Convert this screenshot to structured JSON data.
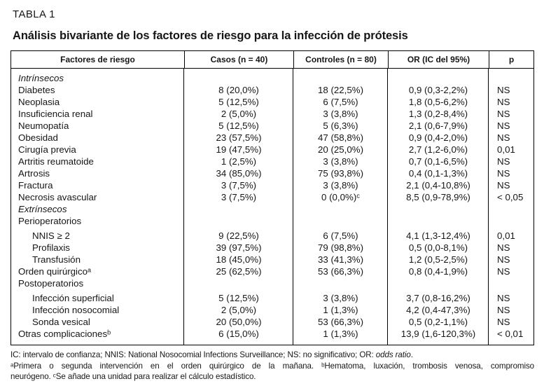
{
  "page": {
    "table_label": "TABLA 1",
    "title": "Análisis bivariante de los factores de riesgo para la infección de prótesis"
  },
  "table": {
    "columns": [
      "Factores de riesgo",
      "Casos (n = 40)",
      "Controles (n = 80)",
      "OR (IC del 95%)",
      "p"
    ],
    "rows": [
      {
        "type": "section",
        "label": "Intrínsecos"
      },
      {
        "type": "data",
        "label": "Diabetes",
        "casos": "8 (20,0%)",
        "controles": "18 (22,5%)",
        "or": "0,9 (0,3-2,2%)",
        "p": "NS"
      },
      {
        "type": "data",
        "label": "Neoplasia",
        "casos": "5 (12,5%)",
        "controles": "6 (7,5%)",
        "or": "1,8 (0,5-6,2%)",
        "p": "NS"
      },
      {
        "type": "data",
        "label": "Insuficiencia renal",
        "casos": "2 (5,0%)",
        "controles": "3 (3,8%)",
        "or": "1,3 (0,2-8,4%)",
        "p": "NS"
      },
      {
        "type": "data",
        "label": "Neumopatía",
        "casos": "5 (12,5%)",
        "controles": "5 (6,3%)",
        "or": "2,1 (0,6-7,9%)",
        "p": "NS"
      },
      {
        "type": "data",
        "label": "Obesidad",
        "casos": "23 (57,5%)",
        "controles": "47 (58,8%)",
        "or": "0,9 (0,4-2,0%)",
        "p": "NS"
      },
      {
        "type": "data",
        "label": "Cirugía previa",
        "casos": "19 (47,5%)",
        "controles": "20 (25,0%)",
        "or": "2,7 (1,2-6,0%)",
        "p": "0,01"
      },
      {
        "type": "data",
        "label": "Artritis reumatoide",
        "casos": "1 (2,5%)",
        "controles": "3 (3,8%)",
        "or": "0,7 (0,1-6,5%)",
        "p": "NS"
      },
      {
        "type": "data",
        "label": "Artrosis",
        "casos": "34 (85,0%)",
        "controles": "75 (93,8%)",
        "or": "0,4 (0,1-1,3%)",
        "p": "NS"
      },
      {
        "type": "data",
        "label": "Fractura",
        "casos": "3 (7,5%)",
        "controles": "3 (3,8%)",
        "or": "2,1 (0,4-10,8%)",
        "p": "NS"
      },
      {
        "type": "data",
        "label": "Necrosis avascular",
        "casos": "3 (7,5%)",
        "controles": "0 (0,0%)ᶜ",
        "or": "8,5 (0,9-78,9%)",
        "p": "< 0,05"
      },
      {
        "type": "section",
        "label": "Extrínsecos"
      },
      {
        "type": "group",
        "label": "Perioperatorios"
      },
      {
        "type": "data",
        "indent": true,
        "gap": true,
        "label": "NNIS ≥ 2",
        "casos": "9 (22,5%)",
        "controles": "6 (7,5%)",
        "or": "4,1 (1,3-12,4%)",
        "p": "0,01"
      },
      {
        "type": "data",
        "indent": true,
        "label": "Profilaxis",
        "casos": "39 (97,5%)",
        "controles": "79 (98,8%)",
        "or": "0,5 (0,0-8,1%)",
        "p": "NS"
      },
      {
        "type": "data",
        "indent": true,
        "label": "Transfusión",
        "casos": "18 (45,0%)",
        "controles": "33 (41,3%)",
        "or": "1,2 (0,5-2,5%)",
        "p": "NS"
      },
      {
        "type": "data",
        "label": "Orden quirúrgicoᵃ",
        "casos": "25 (62,5%)",
        "controles": "53 (66,3%)",
        "or": "0,8 (0,4-1,9%)",
        "p": "NS"
      },
      {
        "type": "group",
        "label": "Postoperatorios"
      },
      {
        "type": "data",
        "indent": true,
        "gap": true,
        "label": "Infección superficial",
        "casos": "5 (12,5%)",
        "controles": "3 (3,8%)",
        "or": "3,7 (0,8-16,2%)",
        "p": "NS"
      },
      {
        "type": "data",
        "indent": true,
        "label": "Infección nosocomial",
        "casos": "2 (5,0%)",
        "controles": "1 (1,3%)",
        "or": "4,2 (0,4-47,3%)",
        "p": "NS"
      },
      {
        "type": "data",
        "indent": true,
        "label": "Sonda vesical",
        "casos": "20 (50,0%)",
        "controles": "53 (66,3%)",
        "or": "0,5 (0,2-1,1%)",
        "p": "NS"
      },
      {
        "type": "data",
        "label": "Otras complicacionesᵇ",
        "casos": "6 (15,0%)",
        "controles": "1 (1,3%)",
        "or": "13,9 (1,6-120,3%)",
        "p": "< 0,01"
      }
    ]
  },
  "footnotes": {
    "abbreviations": "IC: intervalo de confianza; NNIS: National Nosocomial Infections Surveillance; NS: no significativo; OR: ",
    "abbreviations_italic": "odds ratio",
    "abbreviations_end": ".",
    "lines": [
      "ᵃPrimera o segunda intervención en el orden quirúrgico de la mañana. ᵇHematoma, luxación, trombosis venosa, compromiso",
      "neurógeno. ᶜSe añade una unidad para realizar el cálculo estadístico."
    ]
  }
}
